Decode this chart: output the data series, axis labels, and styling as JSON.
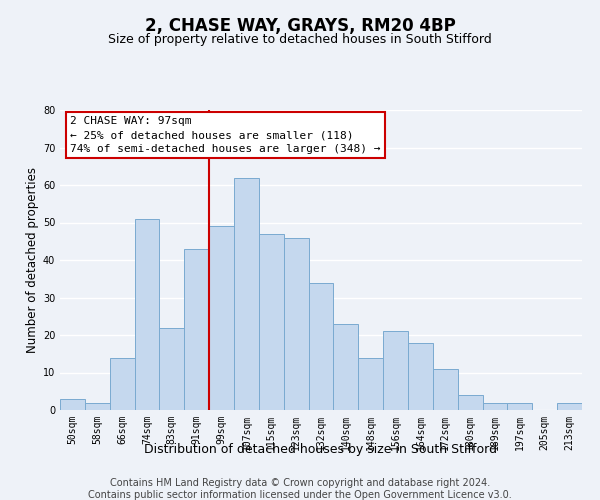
{
  "title": "2, CHASE WAY, GRAYS, RM20 4BP",
  "subtitle": "Size of property relative to detached houses in South Stifford",
  "xlabel": "Distribution of detached houses by size in South Stifford",
  "ylabel": "Number of detached properties",
  "bar_color": "#c5d8ee",
  "bar_edge_color": "#7aaad0",
  "categories": [
    "50sqm",
    "58sqm",
    "66sqm",
    "74sqm",
    "83sqm",
    "91sqm",
    "99sqm",
    "107sqm",
    "115sqm",
    "123sqm",
    "132sqm",
    "140sqm",
    "148sqm",
    "156sqm",
    "164sqm",
    "172sqm",
    "180sqm",
    "189sqm",
    "197sqm",
    "205sqm",
    "213sqm"
  ],
  "values": [
    3,
    2,
    14,
    51,
    22,
    43,
    49,
    62,
    47,
    46,
    34,
    23,
    14,
    21,
    18,
    11,
    4,
    2,
    2,
    0,
    2
  ],
  "ylim": [
    0,
    80
  ],
  "yticks": [
    0,
    10,
    20,
    30,
    40,
    50,
    60,
    70,
    80
  ],
  "vline_index": 6,
  "vline_color": "#cc0000",
  "annotation_title": "2 CHASE WAY: 97sqm",
  "annotation_line1": "← 25% of detached houses are smaller (118)",
  "annotation_line2": "74% of semi-detached houses are larger (348) →",
  "annotation_box_color": "#ffffff",
  "annotation_box_edge": "#cc0000",
  "footer_line1": "Contains HM Land Registry data © Crown copyright and database right 2024.",
  "footer_line2": "Contains public sector information licensed under the Open Government Licence v3.0.",
  "background_color": "#eef2f8",
  "plot_background": "#eef2f8",
  "grid_color": "#ffffff",
  "title_fontsize": 12,
  "subtitle_fontsize": 9,
  "xlabel_fontsize": 9,
  "ylabel_fontsize": 8.5,
  "tick_fontsize": 7,
  "footer_fontsize": 7
}
